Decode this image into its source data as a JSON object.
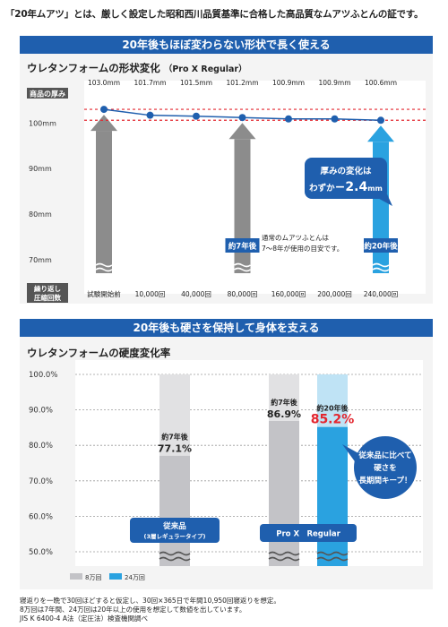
{
  "intro_text": "「20年ムアツ」とは、厳しく設定した昭和西川品質基準に合格した高品質なムアツふとんの証です。",
  "colors": {
    "accent": "#1f5fae",
    "gray_bar": "#8c8c8c",
    "light_bar": "#c3c3c7",
    "cyan": "#2aa2e0",
    "red": "#e3262f"
  },
  "chart_data": [
    {
      "type": "line",
      "banner": "20年後もほぼ変わらない形状で長く使える",
      "title": "ウレタンフォームの形状変化",
      "subtitle": "（Pro X Regular）",
      "y_header": "商品の厚み",
      "x_header": "繰り返し\n圧縮回数",
      "categories": [
        "試験開始前",
        "10,000回",
        "40,000回",
        "80,000回",
        "160,000回",
        "200,000回",
        "240,000回"
      ],
      "values": [
        103.0,
        101.7,
        101.5,
        101.2,
        100.9,
        100.9,
        100.6
      ],
      "value_labels": [
        "103.0mm",
        "101.7mm",
        "101.5mm",
        "101.2mm",
        "100.9mm",
        "100.9mm",
        "100.6mm"
      ],
      "yticks": [
        {
          "value": 100,
          "label": "100mm"
        },
        {
          "value": 90,
          "label": "90mm"
        },
        {
          "value": 80,
          "label": "80mm"
        },
        {
          "value": 70,
          "label": "70mm"
        }
      ],
      "ylim": [
        67,
        104
      ],
      "ref_lines": [
        103.0,
        100.6
      ],
      "arrows": [
        {
          "category": "試験開始前",
          "color": "gray"
        },
        {
          "category": "80,000回",
          "color": "gray",
          "label": "約7年後"
        },
        {
          "category": "240,000回",
          "color": "cyan",
          "label": "約20年後"
        }
      ],
      "callout": {
        "line1": "厚みの変化は",
        "line2_pre": "わずか",
        "line2_value": "−2.4",
        "line2_unit": "mm"
      },
      "note_line1": "通常のムアツふとんは",
      "note_line2": "7〜8年が使用の目安です。"
    },
    {
      "type": "bar",
      "banner": "20年後も硬さを保持して身体を支える",
      "title": "ウレタンフォームの硬度変化率",
      "yticks": [
        "100.0%",
        "90.0%",
        "80.0%",
        "70.0%",
        "60.0%",
        "50.0%"
      ],
      "ylim": [
        47,
        100
      ],
      "series": [
        {
          "name": "8万回",
          "color": "light",
          "values": [
            77.1,
            86.9
          ]
        },
        {
          "name": "24万回",
          "color": "cyan",
          "values": [
            null,
            85.2
          ]
        }
      ],
      "bars": [
        {
          "group": 0,
          "series": 0,
          "value": 77.1,
          "top_label": "約7年後",
          "value_label": "77.1%"
        },
        {
          "group": 1,
          "series": 0,
          "value": 86.9,
          "top_label": "約7年後",
          "value_label": "86.9%"
        },
        {
          "group": 1,
          "series": 1,
          "value": 85.2,
          "top_label": "約20年後",
          "value_label": "85.2%"
        }
      ],
      "groups": [
        {
          "label_line1": "従来品",
          "label_line2": "(3層レギュラータイプ)"
        },
        {
          "label_line1": "Pro X　Regular",
          "label_line2": ""
        }
      ],
      "callout": {
        "line1": "従来品に比べて",
        "line2": "硬さを",
        "line3": "長期間キープ！"
      }
    }
  ],
  "footnotes": [
    "寝返りを一晩で30回ほどすると仮定し、30回×365日で年間10,950回寝返りを想定。",
    "8万回は7年間、24万回は20年以上の使用を想定して数値を出しています。",
    "JIS K 6400-4 A法（定圧法）検査機関調べ"
  ]
}
